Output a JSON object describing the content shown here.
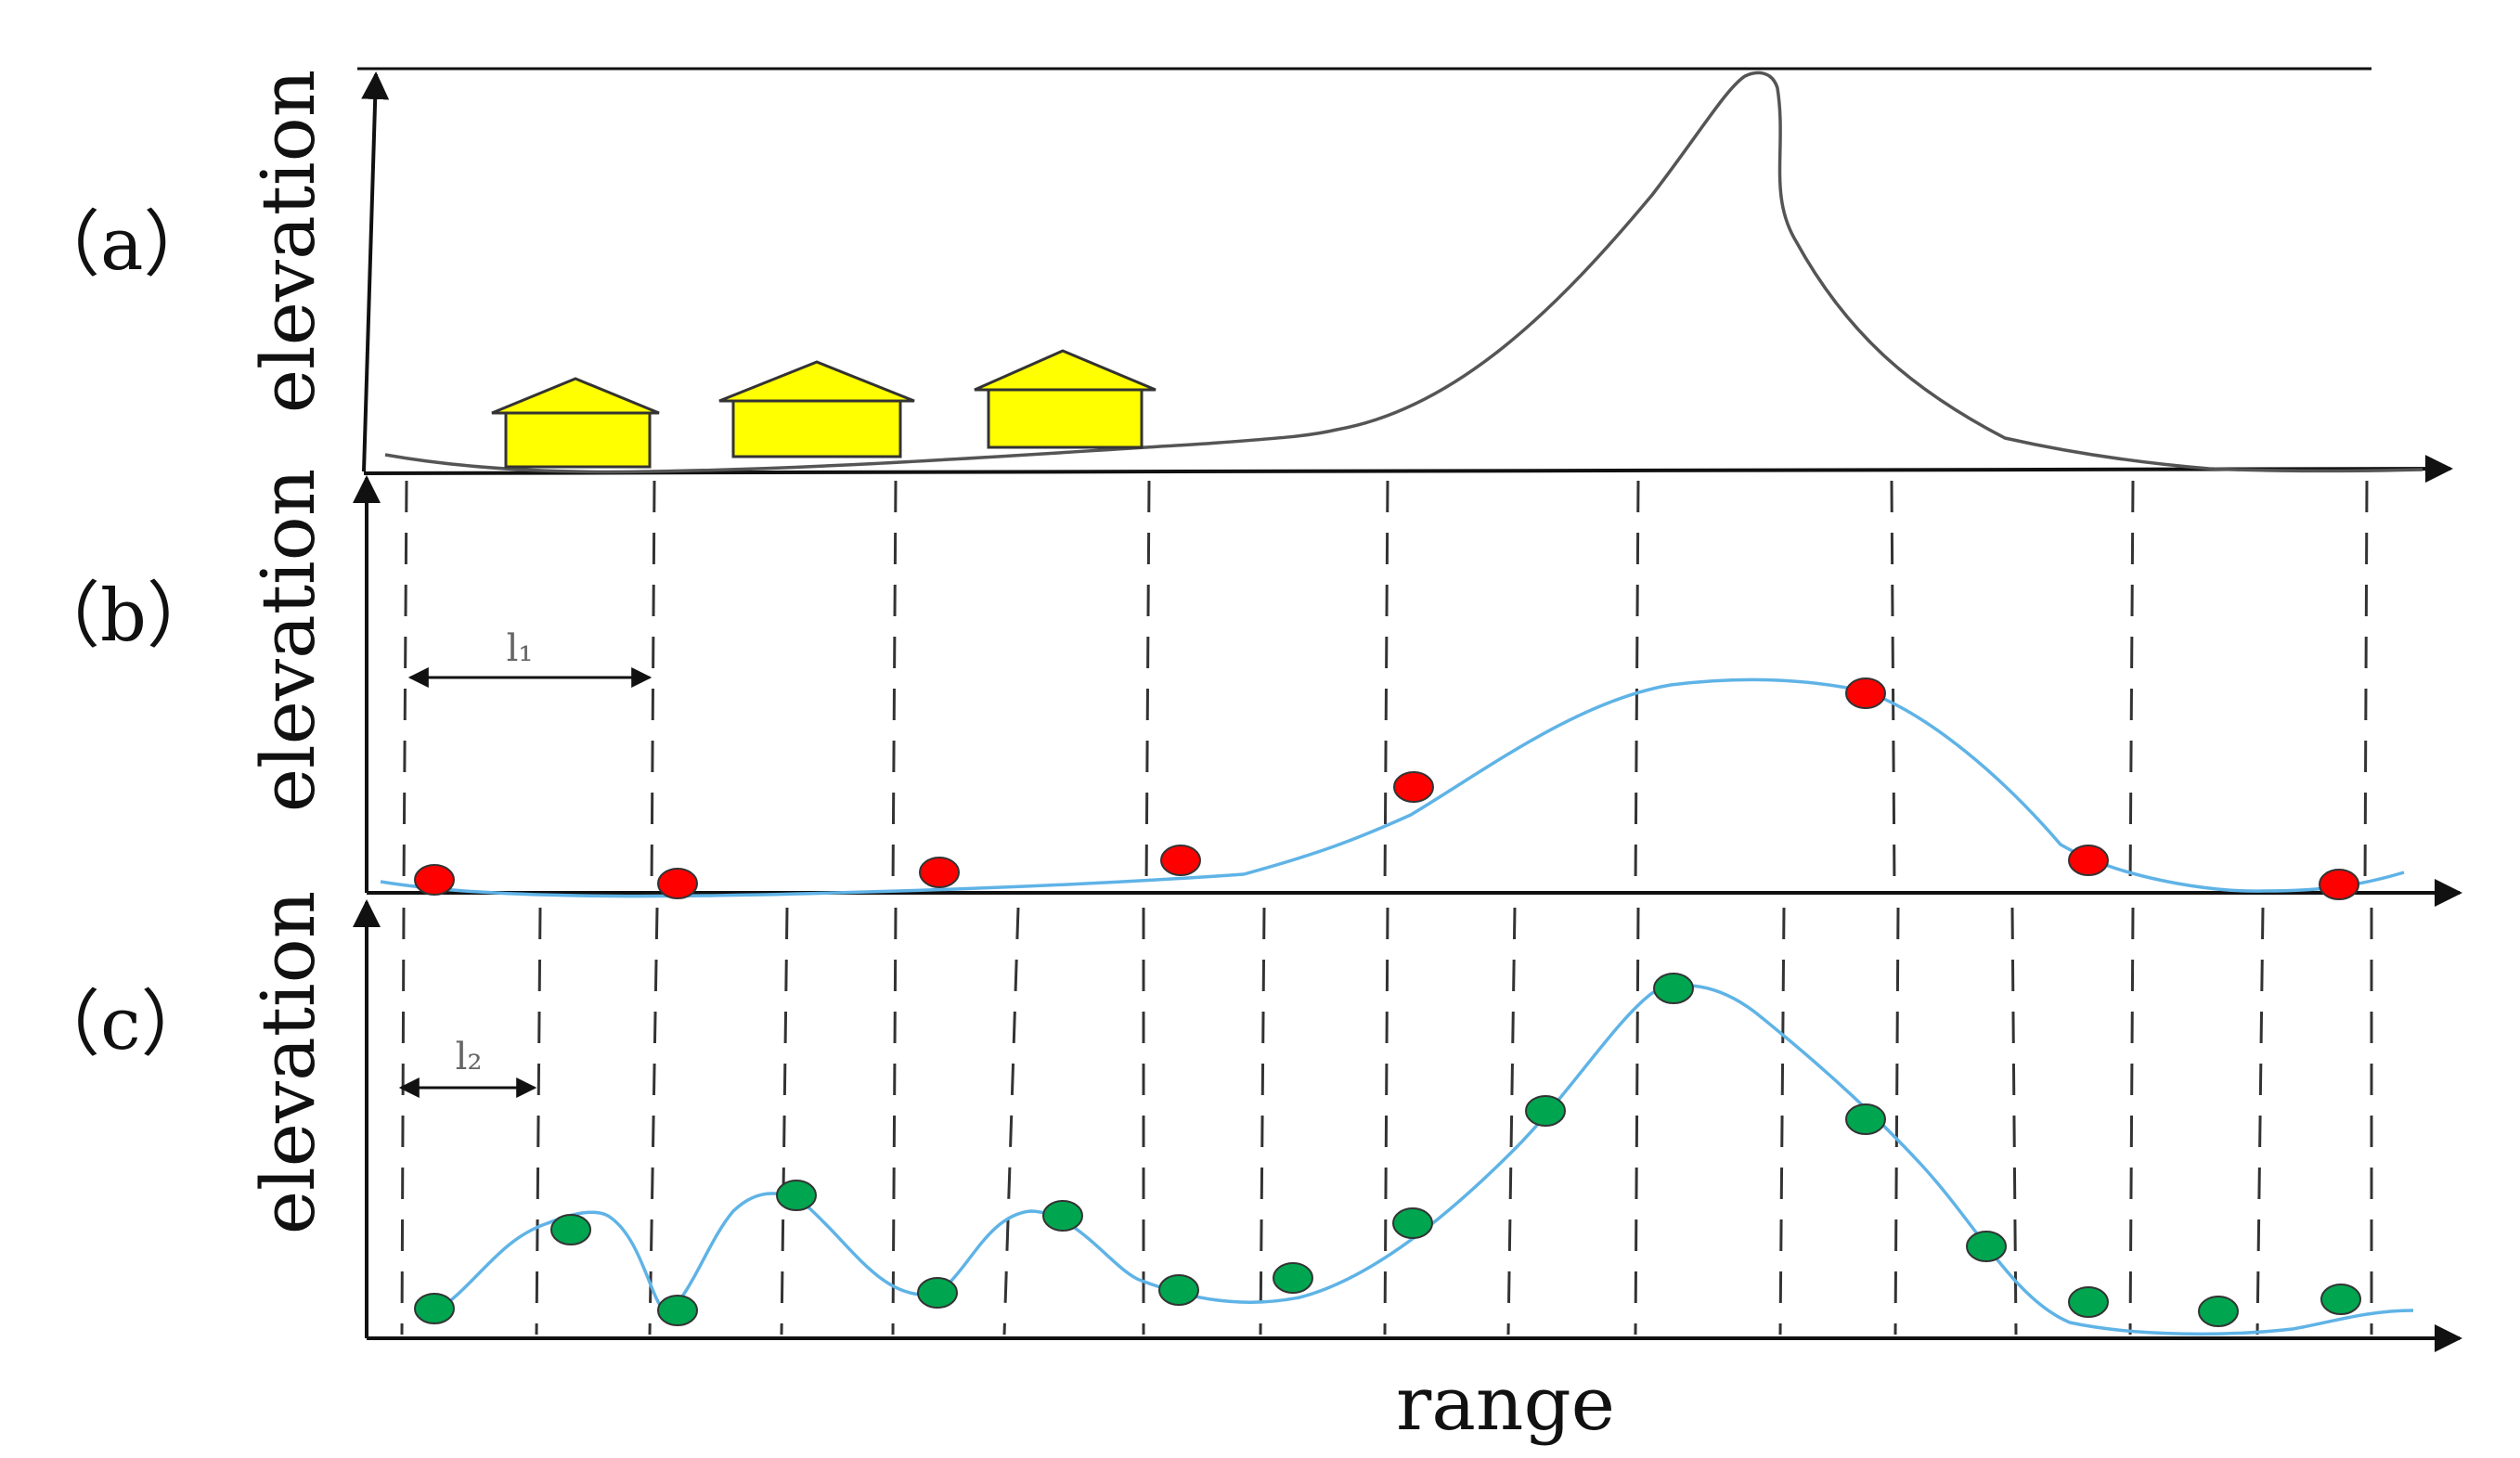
{
  "panels": {
    "a": {
      "label": "（a）",
      "ylabel": "elevation"
    },
    "b": {
      "label": "（b）",
      "ylabel": "elevation",
      "interval_label": "l₁"
    },
    "c": {
      "label": "（c）",
      "ylabel": "elevation",
      "interval_label": "l₂"
    }
  },
  "xlabel": "range",
  "colors": {
    "house": "#ffff00",
    "red_point": "#ff0000",
    "green_point": "#00a550",
    "blue_curve": "#5fb3e6",
    "terrain": "#555555"
  }
}
